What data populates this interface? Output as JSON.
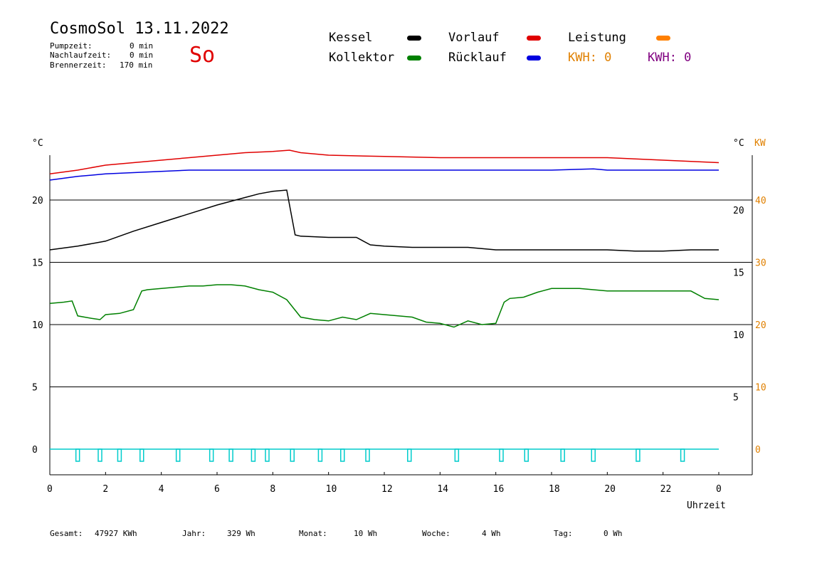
{
  "header": {
    "title": "CosmoSol 13.11.2022",
    "day": "So",
    "pumpzeit_label": "Pumpzeit:",
    "pumpzeit_value": "0 min",
    "nachlaufzeit_label": "Nachlaufzeit:",
    "nachlaufzeit_value": "0 min",
    "brennerzeit_label": "Brennerzeit:",
    "brennerzeit_value": "170 min"
  },
  "legend": {
    "kessel": {
      "label": "Kessel",
      "color": "#000000"
    },
    "kollektor": {
      "label": "Kollektor",
      "color": "#008000"
    },
    "vorlauf": {
      "label": "Vorlauf",
      "color": "#e00000"
    },
    "ruecklauf": {
      "label": "Rücklauf",
      "color": "#0000e0"
    },
    "leistung": {
      "label": "Leistung",
      "color": "#ff8000"
    },
    "kwh_orange": {
      "label": "KWH: 0",
      "color": "#e08000"
    },
    "kwh_purple": {
      "label": "KWH: 0",
      "color": "#800080"
    }
  },
  "footer": {
    "gesamt_label": "Gesamt:",
    "gesamt_value": "47927 KWh",
    "jahr_label": "Jahr:",
    "jahr_value": "329 Wh",
    "monat_label": "Monat:",
    "monat_value": "10 Wh",
    "woche_label": "Woche:",
    "woche_value": "4 Wh",
    "tag_label": "Tag:",
    "tag_value": "0 Wh"
  },
  "chart_data": {
    "type": "line",
    "xlabel": "Uhrzeit",
    "y_left_unit": "°C",
    "y_right_unit": "°C",
    "y_right2_unit": "KW",
    "x_ticks": [
      "0",
      "2",
      "4",
      "6",
      "8",
      "10",
      "12",
      "14",
      "16",
      "18",
      "20",
      "22",
      "0"
    ],
    "xlim": [
      0,
      24
    ],
    "ylim": [
      -1.5,
      24
    ],
    "y_left_ticks": [
      0,
      5,
      10,
      15,
      20
    ],
    "y_left_tick_labels": [
      "0",
      "5",
      "10",
      "15",
      "20"
    ],
    "y_right_tick_labels": [
      "5",
      "10",
      "15",
      "20"
    ],
    "y_right2_tick_labels": [
      "0",
      "10",
      "20",
      "30",
      "40"
    ],
    "grid": true,
    "series": [
      {
        "name": "Vorlauf",
        "color": "#e00000",
        "x": [
          0,
          1,
          2,
          3,
          4,
          5,
          6,
          7,
          8,
          8.6,
          9,
          10,
          12,
          14,
          16,
          18,
          20,
          21,
          22,
          23,
          24
        ],
        "y": [
          22.1,
          22.4,
          22.8,
          23.0,
          23.2,
          23.4,
          23.6,
          23.8,
          23.9,
          24.0,
          23.8,
          23.6,
          23.5,
          23.4,
          23.4,
          23.4,
          23.4,
          23.3,
          23.2,
          23.1,
          23.0
        ]
      },
      {
        "name": "Rücklauf",
        "color": "#0000e0",
        "x": [
          0,
          1,
          2,
          3,
          4,
          5,
          6,
          8,
          10,
          12,
          14,
          16,
          18,
          19.5,
          20,
          22,
          24
        ],
        "y": [
          21.6,
          21.9,
          22.1,
          22.2,
          22.3,
          22.4,
          22.4,
          22.4,
          22.4,
          22.4,
          22.4,
          22.4,
          22.4,
          22.5,
          22.4,
          22.4,
          22.4
        ]
      },
      {
        "name": "Kessel",
        "color": "#000000",
        "x": [
          0,
          1,
          2,
          3,
          4,
          5,
          6,
          7,
          7.5,
          8,
          8.5,
          8.8,
          9,
          10,
          10.5,
          11,
          11.5,
          12,
          13,
          14,
          15,
          16,
          17,
          18,
          19,
          20,
          21,
          22,
          23,
          24
        ],
        "y": [
          16.0,
          16.3,
          16.7,
          17.5,
          18.2,
          18.9,
          19.6,
          20.2,
          20.5,
          20.7,
          20.8,
          17.2,
          17.1,
          17.0,
          17.0,
          17.0,
          16.4,
          16.3,
          16.2,
          16.2,
          16.2,
          16.0,
          16.0,
          16.0,
          16.0,
          16.0,
          15.9,
          15.9,
          16.0,
          16.0
        ]
      },
      {
        "name": "Kollektor",
        "color": "#008000",
        "x": [
          0,
          0.5,
          0.8,
          1,
          1.5,
          1.8,
          2,
          2.5,
          3,
          3.3,
          3.5,
          4,
          5,
          5.5,
          6,
          6.5,
          7,
          7.5,
          8,
          8.5,
          9,
          9.5,
          10,
          10.5,
          11,
          11.5,
          12,
          12.5,
          13,
          13.5,
          14,
          14.5,
          15,
          15.5,
          16,
          16.3,
          16.5,
          17,
          17.5,
          18,
          19,
          20,
          21,
          22,
          23,
          23.5,
          24
        ],
        "y": [
          11.7,
          11.8,
          11.9,
          10.7,
          10.5,
          10.4,
          10.8,
          10.9,
          11.2,
          12.7,
          12.8,
          12.9,
          13.1,
          13.1,
          13.2,
          13.2,
          13.1,
          12.8,
          12.6,
          12.0,
          10.6,
          10.4,
          10.3,
          10.6,
          10.4,
          10.9,
          10.8,
          10.7,
          10.6,
          10.2,
          10.1,
          9.8,
          10.3,
          10.0,
          10.1,
          11.8,
          12.1,
          12.2,
          12.6,
          12.9,
          12.9,
          12.7,
          12.7,
          12.7,
          12.7,
          12.1,
          12.0
        ]
      },
      {
        "name": "Brenner",
        "color": "#00cccc",
        "x": [
          0,
          24
        ],
        "y": [
          0,
          0
        ],
        "pulses": [
          1.0,
          1.8,
          2.5,
          3.3,
          4.6,
          5.8,
          6.5,
          7.3,
          7.8,
          8.7,
          9.7,
          10.5,
          11.4,
          12.9,
          14.6,
          16.2,
          17.1,
          18.4,
          19.5,
          21.1,
          22.7
        ]
      }
    ]
  }
}
